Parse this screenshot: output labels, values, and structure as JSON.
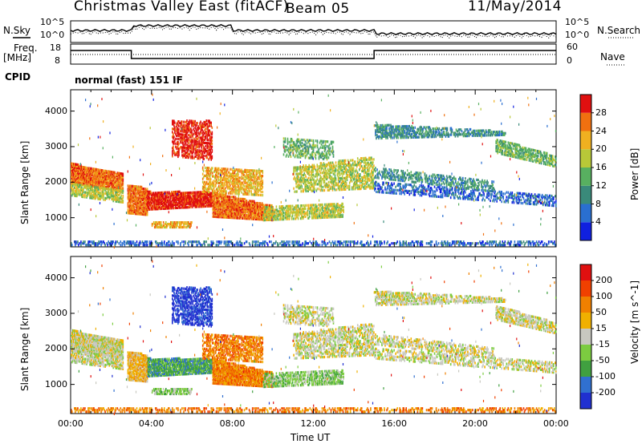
{
  "header": {
    "title": "Christmas Valley East (fitACF)",
    "beam": "Beam 05",
    "date": "11/May/2014"
  },
  "status": {
    "nsky_label": "N.Sky",
    "nsearch_label": "N.Search",
    "noise_ticks": [
      "10^5",
      "10^0"
    ],
    "freq_label": "Freq.",
    "freq_unit": "[MHz]",
    "freq_ticks": [
      "18",
      "8"
    ],
    "nave_label": "Nave",
    "nave_ticks": [
      "60",
      "0"
    ],
    "cpid_label": "CPID",
    "cpid_value": "normal (fast) 151 IF"
  },
  "chart_data": [
    {
      "type": "heatmap",
      "panel": "power",
      "ylabel": "Slant Range [km]",
      "yticks": [
        1000,
        2000,
        3000,
        4000
      ],
      "ylim": [
        180,
        4600
      ],
      "xlim_hours": [
        0,
        24
      ],
      "colorbar_label": "Power [dB]",
      "colorbar_ticks": [
        4,
        8,
        12,
        16,
        20,
        24,
        28
      ],
      "colors": [
        "#1020e0",
        "#2a6fd0",
        "#3a8a7a",
        "#58b060",
        "#b8c838",
        "#f0b020",
        "#f07010",
        "#e01010"
      ]
    },
    {
      "type": "heatmap",
      "panel": "velocity",
      "ylabel": "Slant Range [km]",
      "yticks": [
        1000,
        2000,
        3000,
        4000
      ],
      "ylim": [
        180,
        4600
      ],
      "xlim_hours": [
        0,
        24
      ],
      "colorbar_label": "Velocity [m s^-1]",
      "colorbar_ticks": [
        200,
        100,
        50,
        15,
        -15,
        -50,
        -100,
        -200
      ],
      "colors": [
        "#2030d0",
        "#3070d0",
        "#40a040",
        "#7ccc40",
        "#c8c8c0",
        "#f0b000",
        "#f08000",
        "#f04000",
        "#e01010"
      ]
    }
  ],
  "time_axis": {
    "ticks": [
      "00:00",
      "04:00",
      "08:00",
      "12:00",
      "16:00",
      "20:00",
      "00:00"
    ],
    "label": "Time UT"
  },
  "colors": {
    "ground_scatter": "#b8b8b0",
    "axis": "#000000"
  }
}
